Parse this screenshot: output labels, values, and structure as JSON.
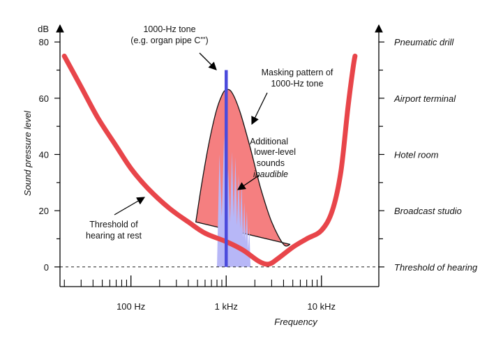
{
  "chart_data": {
    "type": "line",
    "x_scale": "log",
    "xlim_hz": [
      18,
      40000
    ],
    "ylim_db": [
      -7,
      86
    ],
    "xlabel": "Frequency",
    "ylabel": "Sound pressure level",
    "y_unit": "dB",
    "y_ticks": [
      {
        "value": 0,
        "label": "0"
      },
      {
        "value": 20,
        "label": "20"
      },
      {
        "value": 40,
        "label": "40"
      },
      {
        "value": 60,
        "label": "60"
      },
      {
        "value": 80,
        "label": "80"
      }
    ],
    "x_major_ticks": [
      {
        "value": 100,
        "label": "100 Hz"
      },
      {
        "value": 1000,
        "label": "1 kHz"
      },
      {
        "value": 10000,
        "label": "10 kHz"
      }
    ],
    "x_minor_ticks": [
      20,
      30,
      40,
      50,
      60,
      70,
      80,
      90,
      200,
      300,
      400,
      500,
      600,
      700,
      800,
      900,
      2000,
      3000,
      4000,
      5000,
      6000,
      7000,
      8000,
      9000
    ],
    "right_axis_labels": [
      {
        "db": 80,
        "label": "Pneumatic drill"
      },
      {
        "db": 60,
        "label": "Airport terminal"
      },
      {
        "db": 40,
        "label": "Hotel room"
      },
      {
        "db": 20,
        "label": "Broadcast studio"
      },
      {
        "db": 0,
        "label": "Threshold of hearing"
      }
    ],
    "threshold_curve": {
      "name": "Threshold of hearing at rest",
      "color": "#e8454a",
      "points": [
        [
          20,
          75
        ],
        [
          30,
          64
        ],
        [
          45,
          53
        ],
        [
          70,
          43
        ],
        [
          100,
          35
        ],
        [
          150,
          28
        ],
        [
          250,
          21
        ],
        [
          400,
          16
        ],
        [
          600,
          12
        ],
        [
          1000,
          9
        ],
        [
          1500,
          6
        ],
        [
          2200,
          2
        ],
        [
          2800,
          1
        ],
        [
          3500,
          3
        ],
        [
          5000,
          7
        ],
        [
          7000,
          10
        ],
        [
          10000,
          13
        ],
        [
          13000,
          20
        ],
        [
          16000,
          34
        ],
        [
          19000,
          57
        ],
        [
          21500,
          71
        ],
        [
          22500,
          75
        ]
      ]
    },
    "masking_pattern": {
      "name": "Masking pattern of 1000-Hz tone",
      "fill": "#f57f80",
      "points": [
        [
          480,
          16
        ],
        [
          550,
          29
        ],
        [
          650,
          43
        ],
        [
          780,
          55
        ],
        [
          900,
          61
        ],
        [
          1000,
          63
        ],
        [
          1150,
          62
        ],
        [
          1400,
          55
        ],
        [
          1800,
          42
        ],
        [
          2300,
          28
        ],
        [
          3000,
          16
        ],
        [
          4000,
          8
        ],
        [
          4700,
          8
        ]
      ]
    },
    "inaudible_sounds": {
      "color": "#b7b7f7",
      "peaks": [
        [
          850,
          40
        ],
        [
          950,
          47
        ],
        [
          1050,
          35
        ],
        [
          1150,
          41
        ],
        [
          1250,
          39
        ],
        [
          1350,
          33
        ],
        [
          1450,
          30
        ],
        [
          1550,
          23
        ],
        [
          1650,
          20
        ],
        [
          1750,
          14
        ]
      ]
    },
    "tone": {
      "hz": 1000,
      "db_top": 70,
      "color": "#4b4bdc"
    },
    "threshold_dashed_db": 0
  },
  "annotations": {
    "tone_label_line1": "1000-Hz tone",
    "tone_label_line2": "(e.g. organ pipe C''')",
    "masking_label_line1": "Masking pattern of",
    "masking_label_line2": "1000-Hz tone",
    "additional_line1": "Additional",
    "additional_line2": "lower-level",
    "additional_line3": "sounds",
    "additional_line4": "inaudible",
    "threshold_line1": "Threshold of",
    "threshold_line2": "hearing at rest"
  }
}
